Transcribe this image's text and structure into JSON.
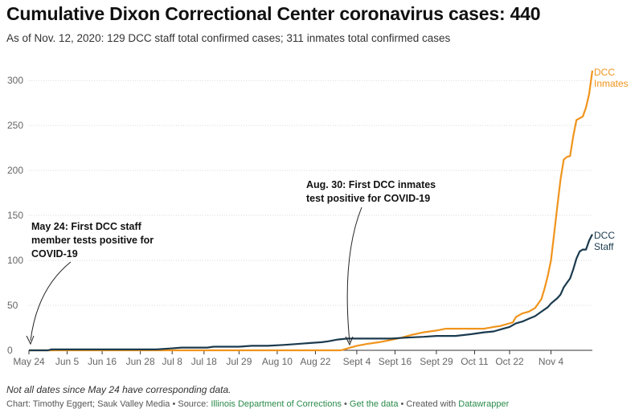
{
  "chart_data": {
    "type": "line",
    "title": "Cumulative Dixon Correctional Center coronavirus cases: 440",
    "subtitle": "As of Nov. 12, 2020: 129 DCC staff total confirmed cases; 311 inmates total confirmed cases",
    "ylim": [
      0,
      310
    ],
    "yticks": [
      0,
      50,
      100,
      150,
      200,
      250,
      300
    ],
    "x_tick_labels": [
      "May 24",
      "Jun 5",
      "Jun 16",
      "Jun 28",
      "Jul 8",
      "Jul 18",
      "Jul 29",
      "Aug 10",
      "Aug 22",
      "Sept 4",
      "Sept 16",
      "Sept 29",
      "Oct 11",
      "Oct 22",
      "Nov 4"
    ],
    "x_tick_positions": [
      0,
      12,
      23,
      35,
      45,
      55,
      66,
      78,
      90,
      103,
      115,
      128,
      140,
      151,
      164
    ],
    "series": [
      {
        "name": "DCC Inmates",
        "color": "#f0941c",
        "points": [
          [
            0,
            0
          ],
          [
            98,
            0
          ],
          [
            99,
            1
          ],
          [
            101,
            3
          ],
          [
            103,
            5
          ],
          [
            106,
            7
          ],
          [
            110,
            9
          ],
          [
            113,
            11
          ],
          [
            117,
            14
          ],
          [
            120,
            17
          ],
          [
            124,
            20
          ],
          [
            128,
            22
          ],
          [
            131,
            24
          ],
          [
            137,
            24
          ],
          [
            143,
            24
          ],
          [
            146,
            26
          ],
          [
            148,
            27
          ],
          [
            150,
            29
          ],
          [
            152,
            31
          ],
          [
            153,
            37
          ],
          [
            155,
            41
          ],
          [
            157,
            43
          ],
          [
            159,
            47
          ],
          [
            161,
            57
          ],
          [
            162,
            69
          ],
          [
            163,
            83
          ],
          [
            164,
            100
          ],
          [
            165,
            130
          ],
          [
            166,
            160
          ],
          [
            167,
            190
          ],
          [
            168,
            212
          ],
          [
            169,
            215
          ],
          [
            170,
            216
          ],
          [
            171,
            238
          ],
          [
            172,
            256
          ],
          [
            173,
            258
          ],
          [
            174,
            260
          ],
          [
            175,
            270
          ],
          [
            176,
            285
          ],
          [
            177,
            311
          ]
        ]
      },
      {
        "name": "DCC Staff",
        "color": "#1b3a4e",
        "points": [
          [
            0,
            0
          ],
          [
            6,
            0
          ],
          [
            7,
            1
          ],
          [
            14,
            1
          ],
          [
            24,
            1
          ],
          [
            34,
            1
          ],
          [
            40,
            1
          ],
          [
            44,
            2
          ],
          [
            48,
            3
          ],
          [
            52,
            3
          ],
          [
            56,
            3
          ],
          [
            58,
            4
          ],
          [
            62,
            4
          ],
          [
            66,
            4
          ],
          [
            70,
            5
          ],
          [
            75,
            5
          ],
          [
            80,
            6
          ],
          [
            84,
            7
          ],
          [
            88,
            8
          ],
          [
            92,
            9
          ],
          [
            94,
            10
          ],
          [
            97,
            12
          ],
          [
            100,
            13
          ],
          [
            105,
            13
          ],
          [
            110,
            13
          ],
          [
            114,
            13
          ],
          [
            118,
            14
          ],
          [
            124,
            15
          ],
          [
            128,
            16
          ],
          [
            134,
            16
          ],
          [
            139,
            18
          ],
          [
            143,
            20
          ],
          [
            146,
            21
          ],
          [
            149,
            24
          ],
          [
            151,
            26
          ],
          [
            153,
            30
          ],
          [
            155,
            32
          ],
          [
            157,
            35
          ],
          [
            159,
            38
          ],
          [
            161,
            43
          ],
          [
            163,
            48
          ],
          [
            164,
            52
          ],
          [
            165,
            55
          ],
          [
            166,
            58
          ],
          [
            167,
            62
          ],
          [
            168,
            70
          ],
          [
            169,
            75
          ],
          [
            170,
            80
          ],
          [
            171,
            90
          ],
          [
            172,
            102
          ],
          [
            173,
            110
          ],
          [
            174,
            112
          ],
          [
            175,
            112
          ],
          [
            176,
            122
          ],
          [
            177,
            129
          ]
        ]
      }
    ],
    "annotations": [
      {
        "lines": [
          "May 24: First DCC staff",
          "member tests positive for",
          "COVID-19"
        ]
      },
      {
        "lines": [
          "Aug. 30: First DCC inmates",
          "test positive for COVID-19"
        ]
      }
    ],
    "series_labels": [
      {
        "lines": [
          "DCC",
          "Inmates"
        ]
      },
      {
        "lines": [
          "DCC",
          "Staff"
        ]
      }
    ]
  },
  "note": "Not all dates since May 24 have corresponding data.",
  "footer": {
    "prefix": "Chart: Timothy Eggert; Sauk Valley Media • Source: ",
    "source_link": "Illinois Department of Corrections",
    "sep1": " • ",
    "data_link": "Get the data",
    "sep2": " • Created with ",
    "dw_link": "Datawrapper"
  }
}
